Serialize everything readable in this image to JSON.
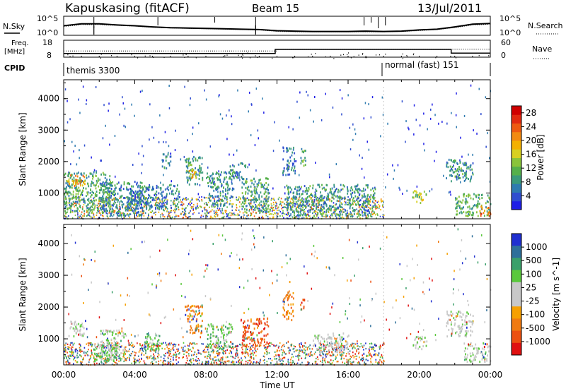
{
  "header": {
    "station": "Kapuskasing (fitACF)",
    "beam": "Beam 15",
    "date": "13/Jul/2011"
  },
  "labels": {
    "n_sky": "N.Sky",
    "n_search": "N.Search",
    "freq_line1": "Freq.",
    "freq_line2": "[MHz]",
    "nave": "Nave",
    "cpid": "CPID",
    "cpid_1": "themis 3300",
    "cpid_2": "normal (fast) 151",
    "noise_top_left": "10^5",
    "noise_bottom_left": "10^0",
    "noise_top_right": "10^5",
    "noise_bottom_right": "10^0",
    "freq_top": "18",
    "freq_bottom": "8",
    "nave_top": "60",
    "nave_bottom": "0"
  },
  "chart_data": [
    {
      "type": "line",
      "panel": "noise",
      "series": [
        {
          "name": "N.Sky",
          "x": [
            0,
            1,
            2,
            3,
            4,
            5,
            6,
            7,
            8,
            9,
            10,
            11,
            12,
            13,
            14,
            15,
            16,
            17,
            18,
            19,
            20,
            21,
            22,
            23,
            24
          ],
          "values": [
            2.5,
            3.0,
            3.0,
            2.7,
            2.5,
            2.2,
            2.0,
            1.9,
            1.8,
            1.7,
            1.6,
            1.5,
            1.2,
            1.1,
            1.0,
            1.0,
            1.0,
            1.1,
            1.0,
            1.1,
            1.4,
            1.6,
            2.2,
            2.9,
            3.1
          ]
        },
        {
          "name": "N.Search",
          "x": [
            0,
            1,
            2,
            3,
            4,
            5,
            6,
            7,
            8,
            9,
            10,
            11,
            12,
            13,
            14,
            15,
            16,
            17,
            18,
            19,
            20,
            21,
            22,
            23,
            24
          ],
          "values": [
            2.3,
            2.8,
            2.8,
            2.6,
            2.4,
            2.1,
            1.9,
            1.8,
            1.7,
            1.6,
            1.5,
            1.4,
            1.0,
            0.9,
            0.9,
            0.9,
            0.9,
            0.9,
            0.9,
            1.0,
            1.2,
            1.5,
            2.0,
            2.7,
            2.9
          ]
        }
      ],
      "ylim": [
        0,
        5
      ]
    },
    {
      "type": "line",
      "panel": "frequency",
      "series": [
        {
          "name": "Freq.",
          "x": [
            0,
            11.9,
            11.9,
            21.8,
            21.8,
            24
          ],
          "values": [
            10.2,
            10.2,
            12.6,
            12.6,
            10.4,
            10.4
          ]
        },
        {
          "name": "Nave",
          "x": [
            0,
            12,
            12,
            24
          ],
          "values": [
            22,
            22,
            28,
            28
          ]
        }
      ],
      "ylim_freq": [
        8,
        18
      ],
      "ylim_nave": [
        0,
        60
      ]
    },
    {
      "type": "heatmap",
      "panel": "power",
      "ylabel": "Slant Range [km]",
      "xlabel": "Time UT",
      "x_ticks": [
        "00:00",
        "04:00",
        "08:00",
        "12:00",
        "16:00",
        "20:00",
        "00:00"
      ],
      "y_ticks": [
        "1000",
        "2000",
        "3000",
        "4000"
      ],
      "xlim": [
        0,
        24
      ],
      "ylim": [
        180,
        4600
      ],
      "colorbar": {
        "label": "Power [dB]",
        "ticks": [
          "4",
          "8",
          "12",
          "16",
          "20",
          "24",
          "28"
        ],
        "range": [
          0,
          30
        ],
        "colors": [
          "#1f1fe6",
          "#2f4ed0",
          "#2e7bb0",
          "#3a9a7a",
          "#55b04a",
          "#8ac43a",
          "#d8d020",
          "#f4b000",
          "#f28a10",
          "#ee5a10",
          "#e22a10",
          "#d00000"
        ]
      },
      "regions": [
        {
          "t0": 0.0,
          "t1": 2.6,
          "r0": 400,
          "r1": 1700,
          "v": 10
        },
        {
          "t0": 0.2,
          "t1": 1.2,
          "r0": 1250,
          "r1": 1600,
          "v": 20
        },
        {
          "t0": 2.0,
          "t1": 4.5,
          "r0": 300,
          "r1": 1400,
          "v": 7
        },
        {
          "t0": 3.5,
          "t1": 6.5,
          "r0": 500,
          "r1": 1300,
          "v": 6
        },
        {
          "t0": 5.5,
          "t1": 6.0,
          "r0": 1800,
          "r1": 2300,
          "v": 6
        },
        {
          "t0": 6.8,
          "t1": 7.8,
          "r0": 1300,
          "r1": 2200,
          "v": 9
        },
        {
          "t0": 7.0,
          "t1": 7.5,
          "r0": 1500,
          "r1": 1800,
          "v": 18
        },
        {
          "t0": 8.0,
          "t1": 9.5,
          "r0": 600,
          "r1": 1700,
          "v": 7
        },
        {
          "t0": 9.3,
          "t1": 10.2,
          "r0": 1500,
          "r1": 2000,
          "v": 7
        },
        {
          "t0": 10.0,
          "t1": 11.5,
          "r0": 400,
          "r1": 1500,
          "v": 9
        },
        {
          "t0": 12.3,
          "t1": 13.0,
          "r0": 1600,
          "r1": 2500,
          "v": 6
        },
        {
          "t0": 13.3,
          "t1": 13.6,
          "r0": 1900,
          "r1": 2500,
          "v": 10
        },
        {
          "t0": 12.5,
          "t1": 17.5,
          "r0": 300,
          "r1": 1300,
          "v": 8
        },
        {
          "t0": 19.6,
          "t1": 20.4,
          "r0": 700,
          "r1": 1100,
          "v": 13
        },
        {
          "t0": 21.5,
          "t1": 23.0,
          "r0": 1400,
          "r1": 2100,
          "v": 8
        },
        {
          "t0": 22.0,
          "t1": 24.0,
          "r0": 300,
          "r1": 1000,
          "v": 10
        },
        {
          "t0": 23.3,
          "t1": 24.0,
          "r0": 300,
          "r1": 600,
          "v": 22
        }
      ]
    },
    {
      "type": "heatmap",
      "panel": "velocity",
      "ylabel": "Slant Range [km]",
      "xlabel": "Time UT",
      "x_ticks": [
        "00:00",
        "04:00",
        "08:00",
        "12:00",
        "16:00",
        "20:00",
        "00:00"
      ],
      "y_ticks": [
        "1000",
        "2000",
        "3000",
        "4000"
      ],
      "xlim": [
        0,
        24
      ],
      "ylim": [
        180,
        4600
      ],
      "colorbar": {
        "label": "Velocity [m s^-1]",
        "ticks": [
          "1000",
          "500",
          "100",
          "25",
          "-25",
          "-100",
          "-500",
          "-1000"
        ],
        "colors": [
          "#1f2fd0",
          "#2e6f9a",
          "#3aa06a",
          "#5ac83c",
          "#c8c8c8",
          "#c8c8c8",
          "#f6a000",
          "#f07a10",
          "#ec5010",
          "#e01010"
        ]
      },
      "regions": [
        {
          "t0": 0.2,
          "t1": 1.2,
          "r0": 1100,
          "r1": 1600,
          "c": 4
        },
        {
          "t0": 1.5,
          "t1": 3.0,
          "r0": 300,
          "r1": 900,
          "c": 3
        },
        {
          "t0": 2.0,
          "t1": 3.5,
          "r0": 500,
          "r1": 1300,
          "c": 4
        },
        {
          "t0": 4.5,
          "t1": 5.5,
          "r0": 600,
          "r1": 1200,
          "c": 3
        },
        {
          "t0": 6.8,
          "t1": 7.8,
          "r0": 1200,
          "r1": 2100,
          "c": 7
        },
        {
          "t0": 8.0,
          "t1": 9.5,
          "r0": 700,
          "r1": 1500,
          "c": 3
        },
        {
          "t0": 10.0,
          "t1": 11.5,
          "r0": 800,
          "r1": 1700,
          "c": 8
        },
        {
          "t0": 12.3,
          "t1": 12.9,
          "r0": 1600,
          "r1": 2500,
          "c": 7
        },
        {
          "t0": 13.3,
          "t1": 13.6,
          "r0": 1900,
          "r1": 2300,
          "c": 8
        },
        {
          "t0": 14.0,
          "t1": 16.0,
          "r0": 600,
          "r1": 1200,
          "c": 4
        },
        {
          "t0": 19.6,
          "t1": 20.4,
          "r0": 700,
          "r1": 1100,
          "c": 4
        },
        {
          "t0": 21.5,
          "t1": 23.0,
          "r0": 1100,
          "r1": 1900,
          "c": 4
        },
        {
          "t0": 22.5,
          "t1": 24.0,
          "r0": 300,
          "r1": 900,
          "c": 4
        }
      ]
    }
  ]
}
